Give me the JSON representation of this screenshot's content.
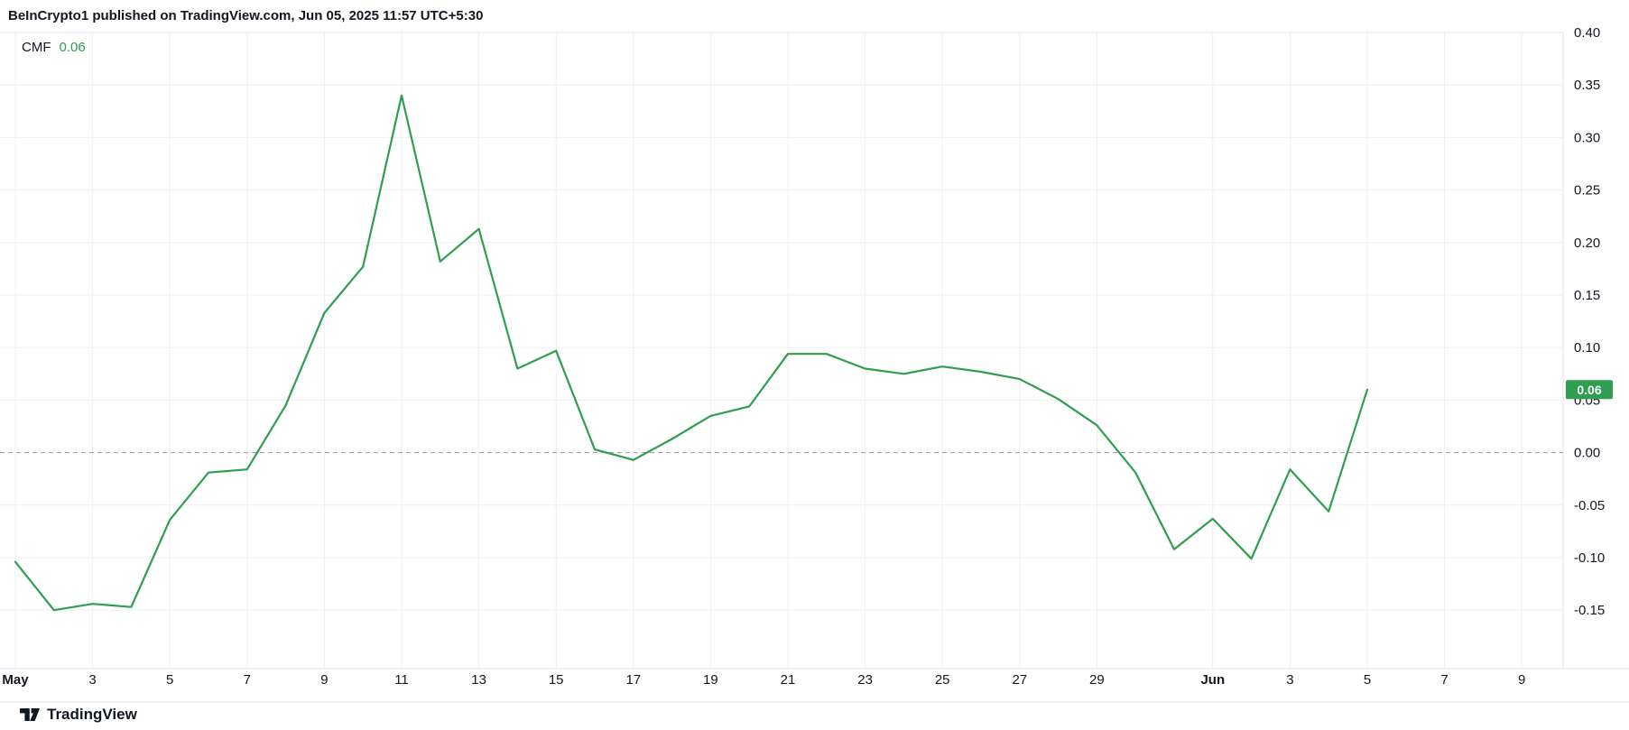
{
  "header": {
    "attribution": "BeInCrypto1 published on TradingView.com, Jun 05, 2025 11:57 UTC+5:30"
  },
  "legend": {
    "indicator": "CMF",
    "value": "0.06"
  },
  "footer": {
    "brand": "TradingView"
  },
  "colors": {
    "line": "#2f9e4f",
    "badge_bg": "#2f9e4f",
    "badge_text": "#ffffff",
    "grid": "#eef0f4",
    "border": "#e0e3eb",
    "zero_line": "#9598a1",
    "axis_text": "#131722"
  },
  "chart_data": {
    "type": "line",
    "title": "CMF",
    "series_name": "CMF",
    "legend_position": "top-left",
    "grid": true,
    "zero_line_dashed": true,
    "current_value": 0.06,
    "ylim": [
      -0.205,
      0.405
    ],
    "y_ticks": [
      0.4,
      0.35,
      0.3,
      0.25,
      0.2,
      0.15,
      0.1,
      0.05,
      0.0,
      -0.05,
      -0.1,
      -0.15
    ],
    "dates": [
      "May 1",
      "May 2",
      "May 3",
      "May 4",
      "May 5",
      "May 6",
      "May 7",
      "May 8",
      "May 9",
      "May 10",
      "May 11",
      "May 12",
      "May 13",
      "May 14",
      "May 15",
      "May 16",
      "May 17",
      "May 18",
      "May 19",
      "May 20",
      "May 21",
      "May 22",
      "May 23",
      "May 24",
      "May 25",
      "May 26",
      "May 27",
      "May 28",
      "May 29",
      "May 30",
      "May 31",
      "Jun 1",
      "Jun 2",
      "Jun 3",
      "Jun 4",
      "Jun 5"
    ],
    "values": [
      -0.104,
      -0.15,
      -0.144,
      -0.147,
      -0.064,
      -0.019,
      -0.016,
      0.045,
      0.133,
      0.177,
      0.34,
      0.182,
      0.213,
      0.08,
      0.097,
      0.003,
      -0.007,
      0.013,
      0.035,
      0.044,
      0.094,
      0.094,
      0.08,
      0.075,
      0.082,
      0.077,
      0.07,
      0.051,
      0.026,
      -0.019,
      -0.092,
      -0.063,
      -0.101,
      -0.016,
      -0.056,
      0.06
    ],
    "x_tick_labels": [
      {
        "day": 0,
        "label": "May",
        "bold": true
      },
      {
        "day": 2,
        "label": "3"
      },
      {
        "day": 4,
        "label": "5"
      },
      {
        "day": 6,
        "label": "7"
      },
      {
        "day": 8,
        "label": "9"
      },
      {
        "day": 10,
        "label": "11"
      },
      {
        "day": 12,
        "label": "13"
      },
      {
        "day": 14,
        "label": "15"
      },
      {
        "day": 16,
        "label": "17"
      },
      {
        "day": 18,
        "label": "19"
      },
      {
        "day": 20,
        "label": "21"
      },
      {
        "day": 22,
        "label": "23"
      },
      {
        "day": 24,
        "label": "25"
      },
      {
        "day": 26,
        "label": "27"
      },
      {
        "day": 28,
        "label": "29"
      },
      {
        "day": 31,
        "label": "Jun",
        "bold": true
      },
      {
        "day": 33,
        "label": "3"
      },
      {
        "day": 35,
        "label": "5"
      },
      {
        "day": 37,
        "label": "7"
      },
      {
        "day": 39,
        "label": "9"
      }
    ]
  }
}
